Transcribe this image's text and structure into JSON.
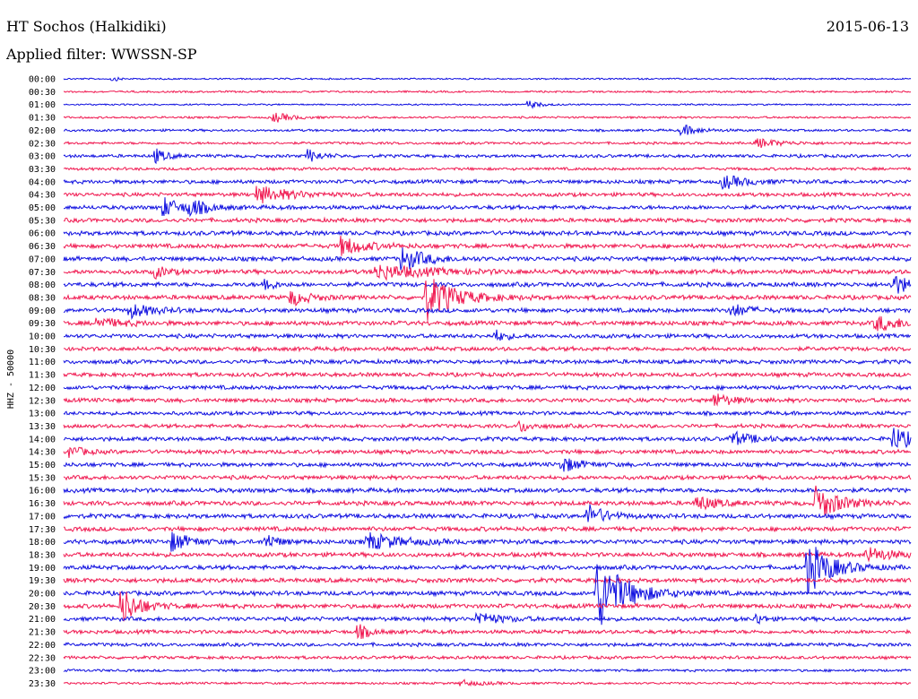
{
  "header": {
    "station": "HT Sochos (Halkidiki)",
    "date": "2015-06-13",
    "filter": "Applied filter: WWSSN-SP"
  },
  "chart_data": {
    "type": "line",
    "title": "HT Sochos (Halkidiki)",
    "ylabel": "HHZ - 50000",
    "xlabel": "",
    "colors": [
      "#1010e0",
      "#f01850"
    ],
    "row_labels": [
      "00:00",
      "00:30",
      "01:00",
      "01:30",
      "02:00",
      "02:30",
      "03:00",
      "03:30",
      "04:00",
      "04:30",
      "05:00",
      "05:30",
      "06:00",
      "06:30",
      "07:00",
      "07:30",
      "08:00",
      "08:30",
      "09:00",
      "09:30",
      "10:00",
      "10:30",
      "11:00",
      "11:30",
      "12:00",
      "12:30",
      "13:00",
      "13:30",
      "14:00",
      "14:30",
      "15:00",
      "15:30",
      "16:00",
      "16:30",
      "17:00",
      "17:30",
      "18:00",
      "18:30",
      "19:00",
      "19:30",
      "20:00",
      "20:30",
      "21:00",
      "21:30",
      "22:00",
      "22:30",
      "23:00",
      "23:30"
    ],
    "noise_amplitude": [
      1,
      1.2,
      1,
      1.3,
      1.5,
      1.6,
      2,
      1.8,
      2.4,
      2.4,
      2.6,
      2.6,
      2.8,
      2.8,
      2.8,
      2.8,
      2.8,
      2.8,
      2.8,
      2.8,
      2.6,
      2.6,
      2.6,
      2.6,
      2.6,
      2.6,
      2.4,
      2.4,
      2.6,
      2.6,
      2.6,
      2.6,
      2.8,
      2.8,
      2.8,
      2.8,
      2.8,
      2.8,
      2.8,
      2.8,
      2.8,
      2.8,
      2.6,
      2.4,
      2.2,
      2,
      1.6,
      1.4
    ],
    "events": [
      {
        "row": 0,
        "pos": 0.06,
        "amp": 2,
        "dur": 0.01
      },
      {
        "row": 2,
        "pos": 0.55,
        "amp": 4,
        "dur": 0.02
      },
      {
        "row": 3,
        "pos": 0.25,
        "amp": 5,
        "dur": 0.03
      },
      {
        "row": 4,
        "pos": 0.73,
        "amp": 6,
        "dur": 0.03
      },
      {
        "row": 5,
        "pos": 0.82,
        "amp": 5,
        "dur": 0.04
      },
      {
        "row": 6,
        "pos": 0.11,
        "amp": 7,
        "dur": 0.02
      },
      {
        "row": 6,
        "pos": 0.29,
        "amp": 7,
        "dur": 0.02
      },
      {
        "row": 8,
        "pos": 0.78,
        "amp": 7,
        "dur": 0.04
      },
      {
        "row": 9,
        "pos": 0.23,
        "amp": 9,
        "dur": 0.06
      },
      {
        "row": 10,
        "pos": 0.12,
        "amp": 10,
        "dur": 0.03
      },
      {
        "row": 10,
        "pos": 0.15,
        "amp": 8,
        "dur": 0.03
      },
      {
        "row": 13,
        "pos": 0.33,
        "amp": 10,
        "dur": 0.04
      },
      {
        "row": 14,
        "pos": 0.4,
        "amp": 13,
        "dur": 0.04
      },
      {
        "row": 15,
        "pos": 0.37,
        "amp": 8,
        "dur": 0.09
      },
      {
        "row": 15,
        "pos": 0.11,
        "amp": 6,
        "dur": 0.02
      },
      {
        "row": 16,
        "pos": 0.24,
        "amp": 10,
        "dur": 0.01
      },
      {
        "row": 16,
        "pos": 0.98,
        "amp": 10,
        "dur": 0.04
      },
      {
        "row": 17,
        "pos": 0.27,
        "amp": 8,
        "dur": 0.03
      },
      {
        "row": 17,
        "pos": 0.43,
        "amp": 24,
        "dur": 0.05
      },
      {
        "row": 18,
        "pos": 0.08,
        "amp": 7,
        "dur": 0.04
      },
      {
        "row": 18,
        "pos": 0.79,
        "amp": 7,
        "dur": 0.03
      },
      {
        "row": 19,
        "pos": 0.04,
        "amp": 6,
        "dur": 0.04
      },
      {
        "row": 19,
        "pos": 0.96,
        "amp": 8,
        "dur": 0.05
      },
      {
        "row": 20,
        "pos": 0.51,
        "amp": 6,
        "dur": 0.02
      },
      {
        "row": 25,
        "pos": 0.77,
        "amp": 7,
        "dur": 0.03
      },
      {
        "row": 27,
        "pos": 0.54,
        "amp": 6,
        "dur": 0.02
      },
      {
        "row": 28,
        "pos": 0.79,
        "amp": 7,
        "dur": 0.04
      },
      {
        "row": 28,
        "pos": 0.98,
        "amp": 12,
        "dur": 0.04
      },
      {
        "row": 29,
        "pos": 0.01,
        "amp": 6,
        "dur": 0.02
      },
      {
        "row": 30,
        "pos": 0.59,
        "amp": 8,
        "dur": 0.03
      },
      {
        "row": 33,
        "pos": 0.75,
        "amp": 8,
        "dur": 0.03
      },
      {
        "row": 33,
        "pos": 0.89,
        "amp": 18,
        "dur": 0.04
      },
      {
        "row": 34,
        "pos": 0.62,
        "amp": 12,
        "dur": 0.03
      },
      {
        "row": 36,
        "pos": 0.13,
        "amp": 10,
        "dur": 0.03
      },
      {
        "row": 36,
        "pos": 0.24,
        "amp": 8,
        "dur": 0.02
      },
      {
        "row": 36,
        "pos": 0.36,
        "amp": 9,
        "dur": 0.06
      },
      {
        "row": 37,
        "pos": 0.95,
        "amp": 8,
        "dur": 0.04
      },
      {
        "row": 38,
        "pos": 0.88,
        "amp": 28,
        "dur": 0.04
      },
      {
        "row": 40,
        "pos": 0.63,
        "amp": 40,
        "dur": 0.05
      },
      {
        "row": 41,
        "pos": 0.07,
        "amp": 20,
        "dur": 0.03
      },
      {
        "row": 42,
        "pos": 0.49,
        "amp": 7,
        "dur": 0.04
      },
      {
        "row": 42,
        "pos": 0.82,
        "amp": 6,
        "dur": 0.01
      },
      {
        "row": 43,
        "pos": 0.35,
        "amp": 7,
        "dur": 0.02
      },
      {
        "row": 47,
        "pos": 0.47,
        "amp": 3,
        "dur": 0.04
      }
    ]
  }
}
